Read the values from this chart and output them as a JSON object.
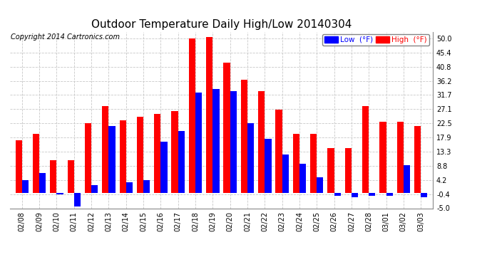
{
  "title": "Outdoor Temperature Daily High/Low 20140304",
  "copyright": "Copyright 2014 Cartronics.com",
  "dates": [
    "02/08",
    "02/09",
    "02/10",
    "02/11",
    "02/12",
    "02/13",
    "02/14",
    "02/15",
    "02/16",
    "02/17",
    "02/18",
    "02/19",
    "02/20",
    "02/21",
    "02/22",
    "02/23",
    "02/24",
    "02/25",
    "02/26",
    "02/27",
    "02/28",
    "03/01",
    "03/02",
    "03/03"
  ],
  "highs": [
    17.0,
    19.0,
    10.5,
    10.5,
    22.5,
    28.0,
    23.5,
    24.5,
    25.5,
    26.5,
    50.0,
    50.5,
    42.0,
    36.5,
    33.0,
    27.0,
    19.0,
    19.0,
    14.5,
    14.5,
    28.0,
    23.0,
    23.0,
    21.5
  ],
  "lows": [
    4.2,
    6.5,
    -0.5,
    -4.5,
    2.5,
    21.5,
    3.5,
    4.0,
    16.5,
    20.0,
    32.5,
    33.5,
    33.0,
    22.5,
    17.5,
    12.5,
    9.5,
    5.0,
    -1.0,
    -1.5,
    -1.0,
    -1.0,
    9.0,
    -1.5
  ],
  "high_color": "#ff0000",
  "low_color": "#0000ff",
  "bg_color": "#ffffff",
  "grid_color": "#c8c8c8",
  "ylim": [
    -5.0,
    52.0
  ],
  "yticks": [
    -5.0,
    -0.4,
    4.2,
    8.8,
    13.3,
    17.9,
    22.5,
    27.1,
    31.7,
    36.2,
    40.8,
    45.4,
    50.0
  ],
  "title_fontsize": 11,
  "copyright_fontsize": 7,
  "bar_width": 0.38,
  "legend_low_label": "Low  (°F)",
  "legend_high_label": "High  (°F)"
}
